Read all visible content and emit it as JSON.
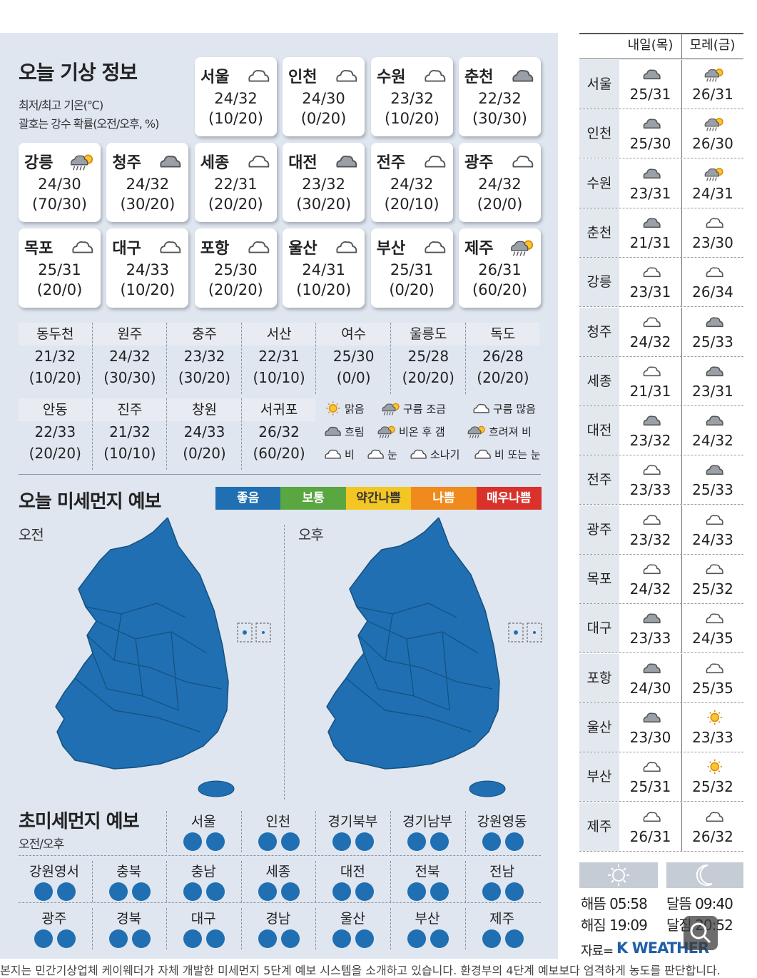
{
  "today": {
    "title": "오늘 기상 정보",
    "sub1": "최저/최고 기온(℃)",
    "sub2": "괄호는 강수 확률(오전/오후, %)",
    "cards": [
      {
        "name": "서울",
        "temp": "24/32",
        "prob": "(10/20)",
        "icon": "cloud-outline-icon"
      },
      {
        "name": "인천",
        "temp": "24/30",
        "prob": "(0/20)",
        "icon": "cloud-outline-icon"
      },
      {
        "name": "수원",
        "temp": "23/32",
        "prob": "(10/20)",
        "icon": "cloud-outline-icon"
      },
      {
        "name": "춘천",
        "temp": "22/32",
        "prob": "(30/30)",
        "icon": "cloud-filled-icon"
      },
      {
        "name": "강릉",
        "temp": "24/30",
        "prob": "(70/30)",
        "icon": "rain-then-sun-icon"
      },
      {
        "name": "청주",
        "temp": "24/32",
        "prob": "(30/20)",
        "icon": "cloud-filled-icon"
      },
      {
        "name": "세종",
        "temp": "22/31",
        "prob": "(20/20)",
        "icon": "cloud-outline-icon"
      },
      {
        "name": "대전",
        "temp": "23/32",
        "prob": "(30/20)",
        "icon": "cloud-filled-icon"
      },
      {
        "name": "전주",
        "temp": "24/32",
        "prob": "(20/10)",
        "icon": "cloud-outline-icon"
      },
      {
        "name": "광주",
        "temp": "24/32",
        "prob": "(20/0)",
        "icon": "cloud-outline-icon"
      },
      {
        "name": "목포",
        "temp": "25/31",
        "prob": "(20/0)",
        "icon": "cloud-outline-icon"
      },
      {
        "name": "대구",
        "temp": "24/33",
        "prob": "(10/20)",
        "icon": "cloud-outline-icon"
      },
      {
        "name": "포항",
        "temp": "25/30",
        "prob": "(20/20)",
        "icon": "cloud-outline-icon"
      },
      {
        "name": "울산",
        "temp": "24/31",
        "prob": "(10/20)",
        "icon": "cloud-outline-icon"
      },
      {
        "name": "부산",
        "temp": "25/31",
        "prob": "(0/20)",
        "icon": "cloud-outline-icon"
      },
      {
        "name": "제주",
        "temp": "26/31",
        "prob": "(60/20)",
        "icon": "rain-then-sun-icon"
      }
    ],
    "grid1": [
      {
        "name": "동두천",
        "temp": "21/32",
        "prob": "(10/20)"
      },
      {
        "name": "원주",
        "temp": "24/32",
        "prob": "(30/30)"
      },
      {
        "name": "충주",
        "temp": "23/32",
        "prob": "(30/20)"
      },
      {
        "name": "서산",
        "temp": "22/31",
        "prob": "(10/10)"
      },
      {
        "name": "여수",
        "temp": "25/30",
        "prob": "(0/0)"
      },
      {
        "name": "울릉도",
        "temp": "25/28",
        "prob": "(20/20)"
      },
      {
        "name": "독도",
        "temp": "26/28",
        "prob": "(20/20)"
      }
    ],
    "grid2": [
      {
        "name": "안동",
        "temp": "22/33",
        "prob": "(20/20)"
      },
      {
        "name": "진주",
        "temp": "21/32",
        "prob": "(10/10)"
      },
      {
        "name": "창원",
        "temp": "24/33",
        "prob": "(0/20)"
      },
      {
        "name": "서귀포",
        "temp": "26/32",
        "prob": "(60/20)"
      }
    ],
    "legend": [
      "맑음",
      "구름 조금",
      "구름 많음",
      "흐림",
      "비온 후 갬",
      "흐려져 비",
      "비",
      "눈",
      "소나기",
      "비 또는 눈"
    ]
  },
  "dust": {
    "title": "오늘 미세먼지 예보",
    "levels": [
      {
        "label": "좋음",
        "color": "#1f6fb2"
      },
      {
        "label": "보통",
        "color": "#5aa641"
      },
      {
        "label": "약간나쁨",
        "color": "#f3c623"
      },
      {
        "label": "나쁨",
        "color": "#f08a1c"
      },
      {
        "label": "매우나쁨",
        "color": "#d9312b"
      }
    ],
    "am": "오전",
    "pm": "오후",
    "map_color": "#1f6fb2"
  },
  "fine": {
    "title": "초미세먼지 예보",
    "sub": "오전/오후",
    "row1": [
      "서울",
      "인천",
      "경기북부",
      "경기남부",
      "강원영동"
    ],
    "row2": [
      "강원영서",
      "충북",
      "충남",
      "세종",
      "대전",
      "전북",
      "전남"
    ],
    "row3": [
      "광주",
      "경북",
      "대구",
      "경남",
      "울산",
      "부산",
      "제주"
    ],
    "dot_color": "#1f6fb2"
  },
  "forecast": {
    "col1": "내일(목)",
    "col2": "모레(금)",
    "rows": [
      {
        "name": "서울",
        "t1": "25/31",
        "i1": "cloud-filled-icon",
        "t2": "26/31",
        "i2": "rain-then-sun-icon"
      },
      {
        "name": "인천",
        "t1": "25/30",
        "i1": "cloud-filled-icon",
        "t2": "26/30",
        "i2": "rain-then-sun-icon"
      },
      {
        "name": "수원",
        "t1": "23/31",
        "i1": "cloud-filled-icon",
        "t2": "24/31",
        "i2": "rain-then-sun-icon"
      },
      {
        "name": "춘천",
        "t1": "21/31",
        "i1": "cloud-filled-icon",
        "t2": "23/30",
        "i2": "cloud-outline-icon"
      },
      {
        "name": "강릉",
        "t1": "23/31",
        "i1": "cloud-outline-icon",
        "t2": "26/34",
        "i2": "cloud-outline-icon"
      },
      {
        "name": "청주",
        "t1": "24/32",
        "i1": "cloud-outline-icon",
        "t2": "25/33",
        "i2": "cloud-filled-icon"
      },
      {
        "name": "세종",
        "t1": "21/31",
        "i1": "cloud-outline-icon",
        "t2": "23/31",
        "i2": "cloud-filled-icon"
      },
      {
        "name": "대전",
        "t1": "23/32",
        "i1": "cloud-filled-icon",
        "t2": "24/32",
        "i2": "cloud-filled-icon"
      },
      {
        "name": "전주",
        "t1": "23/33",
        "i1": "cloud-outline-icon",
        "t2": "25/33",
        "i2": "cloud-filled-icon"
      },
      {
        "name": "광주",
        "t1": "23/32",
        "i1": "cloud-outline-icon",
        "t2": "24/33",
        "i2": "cloud-outline-icon"
      },
      {
        "name": "목포",
        "t1": "24/32",
        "i1": "cloud-outline-icon",
        "t2": "25/32",
        "i2": "cloud-outline-icon"
      },
      {
        "name": "대구",
        "t1": "23/33",
        "i1": "cloud-filled-icon",
        "t2": "24/35",
        "i2": "cloud-outline-icon"
      },
      {
        "name": "포항",
        "t1": "24/30",
        "i1": "cloud-filled-icon",
        "t2": "25/35",
        "i2": "cloud-outline-icon"
      },
      {
        "name": "울산",
        "t1": "23/30",
        "i1": "cloud-filled-icon",
        "t2": "23/33",
        "i2": "sun-icon"
      },
      {
        "name": "부산",
        "t1": "25/31",
        "i1": "cloud-outline-icon",
        "t2": "25/32",
        "i2": "sun-icon"
      },
      {
        "name": "제주",
        "t1": "26/31",
        "i1": "cloud-outline-icon",
        "t2": "26/32",
        "i2": "cloud-outline-icon"
      }
    ],
    "sunrise": "해뜸 05:58",
    "sunset": "해짐 19:09",
    "moonrise": "달뜸 09:40",
    "moonset": "달짐 20:52",
    "source": "자료=",
    "brand": "K WEATHER"
  },
  "footer": "본지는 민간기상업체 케이웨더가 자체 개발한 미세먼지 5단계 예보 시스템을 소개하고 있습니다. 환경부의 4단계 예보보다 엄격하게 농도를 판단합니다."
}
